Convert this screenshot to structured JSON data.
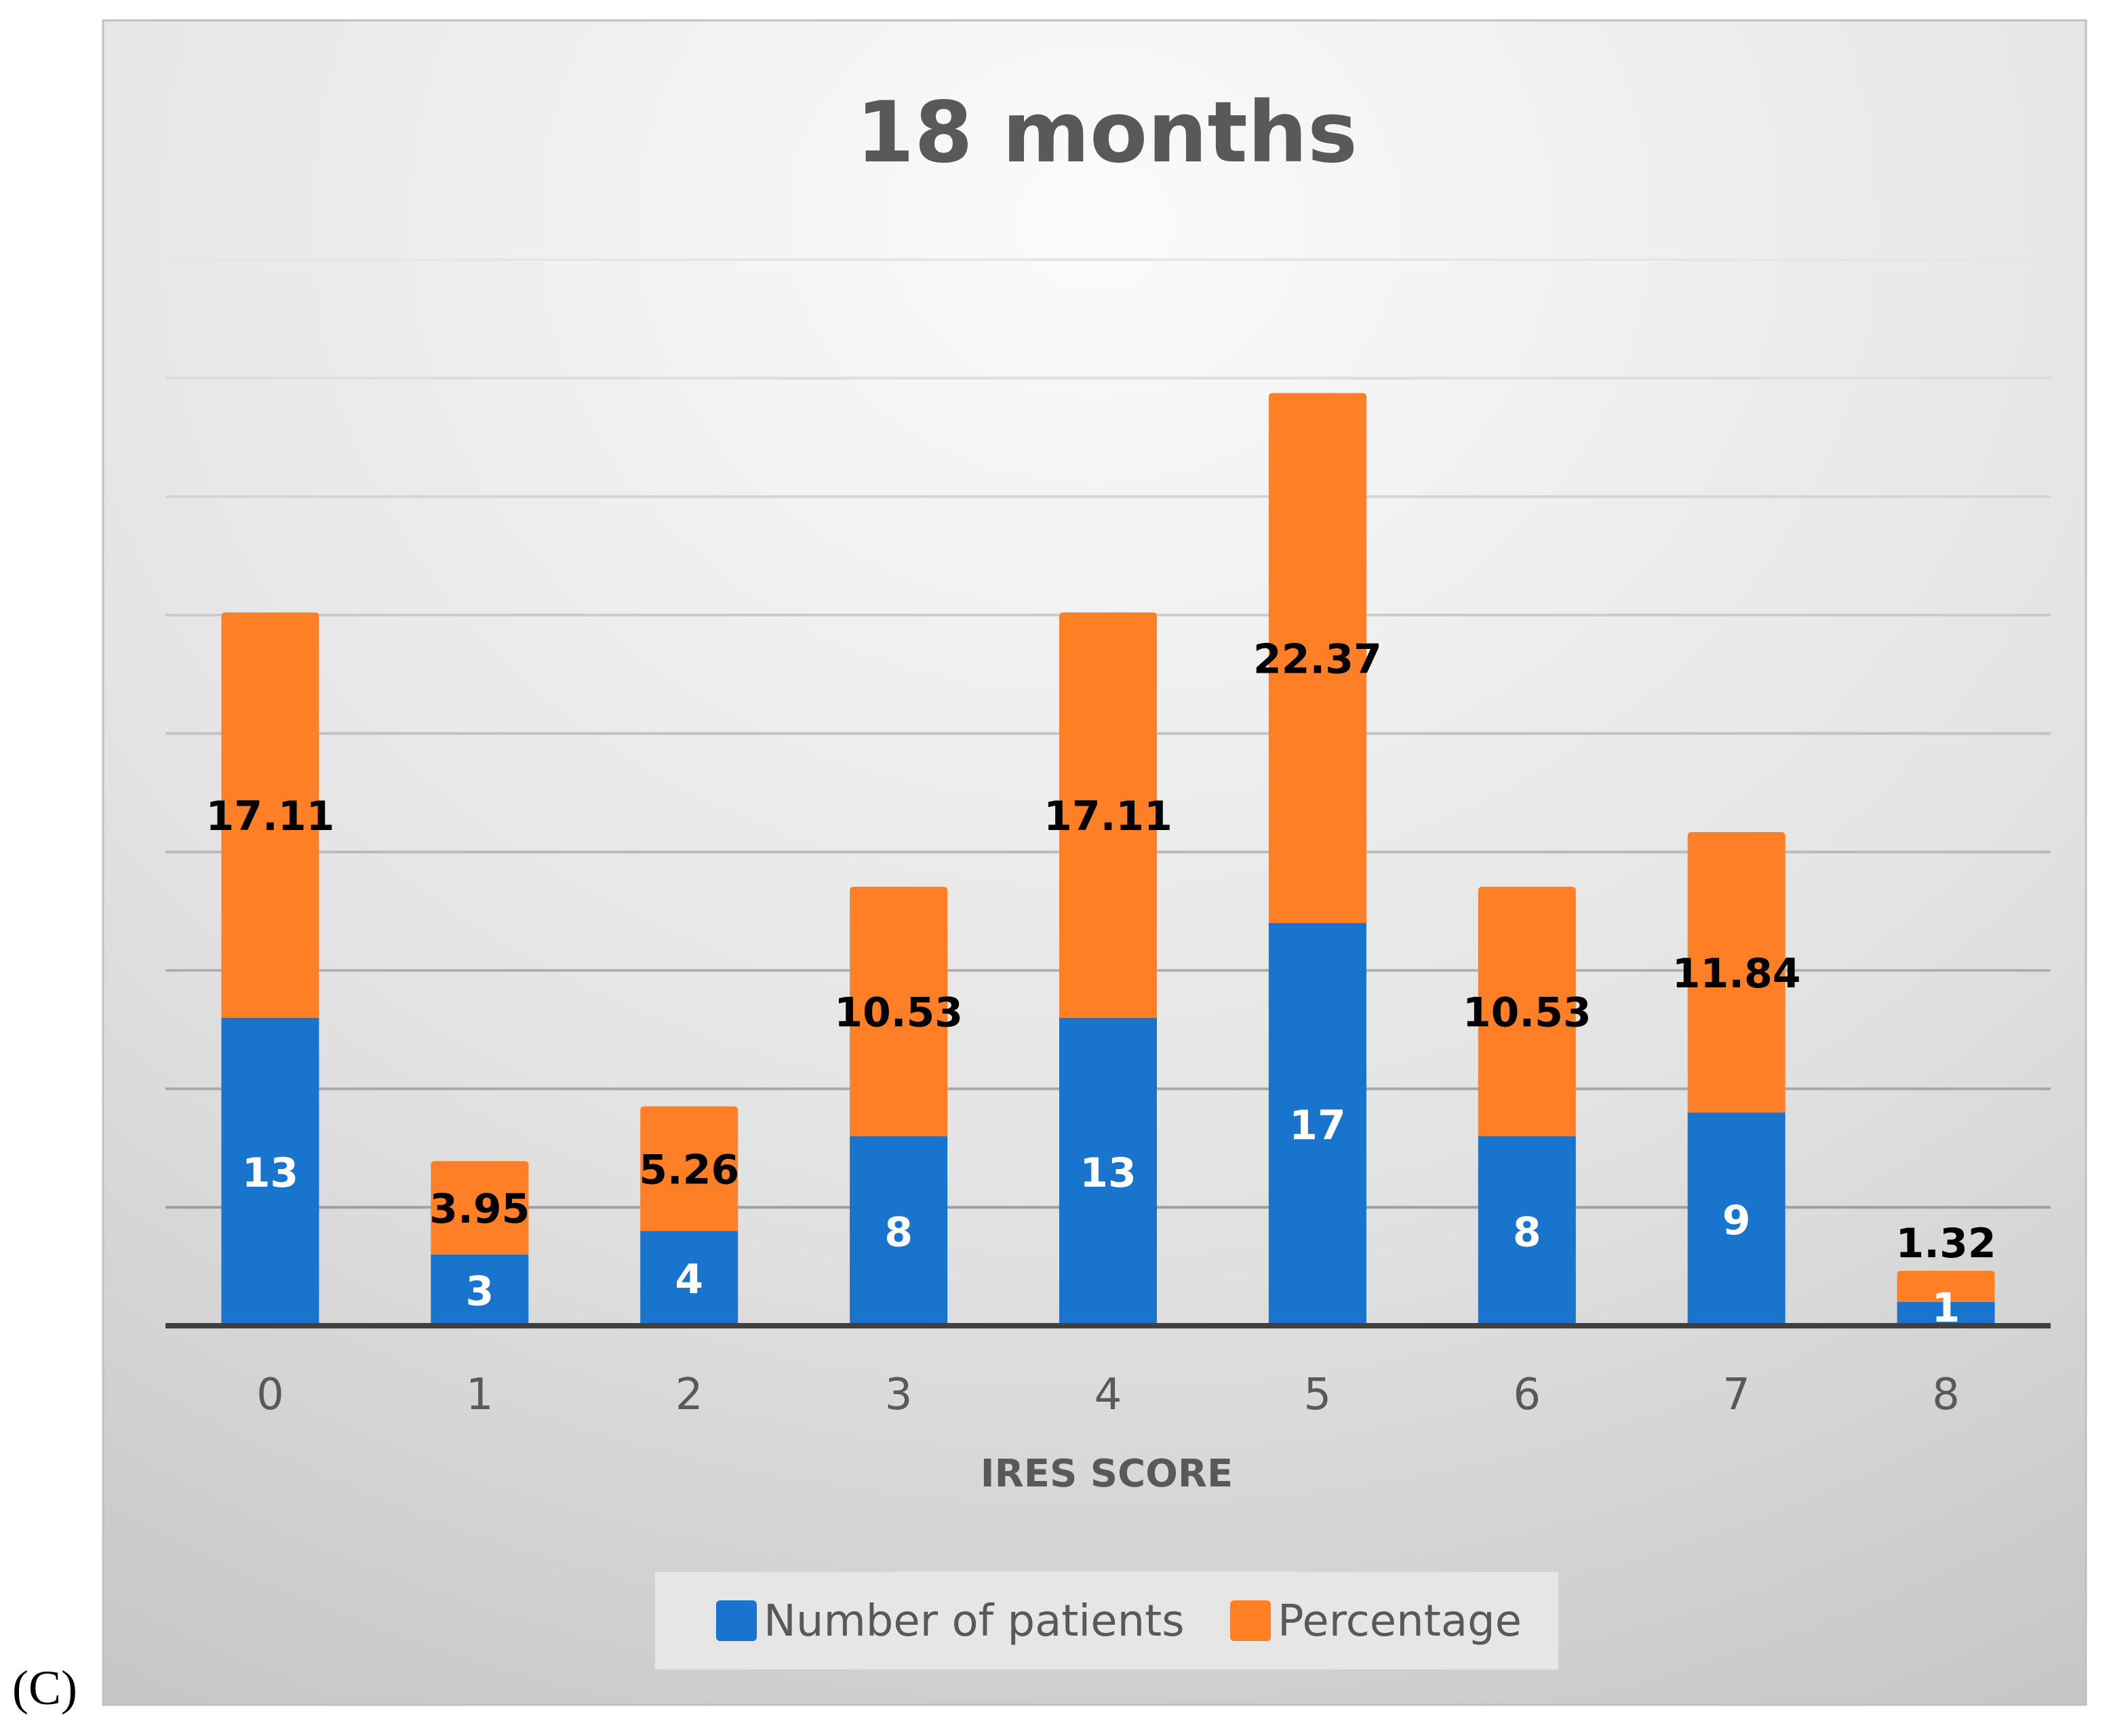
{
  "panel_label": "(C)",
  "chart_data": {
    "type": "bar",
    "stacked": true,
    "title": "18 months",
    "xlabel": "IRES SCORE",
    "ylabel": "",
    "categories": [
      "0",
      "1",
      "2",
      "3",
      "4",
      "5",
      "6",
      "7",
      "8"
    ],
    "series": [
      {
        "name": "Number of patients",
        "color": "#1874CD",
        "values": [
          13,
          3,
          4,
          8,
          13,
          17,
          8,
          9,
          1
        ]
      },
      {
        "name": "Percentage",
        "color": "#FF7F27",
        "values": [
          17.11,
          3.95,
          5.26,
          10.53,
          17.11,
          22.37,
          10.53,
          11.84,
          1.32
        ]
      }
    ],
    "ylim": [
      0,
      45
    ],
    "grid": true,
    "legend_position": "bottom"
  }
}
